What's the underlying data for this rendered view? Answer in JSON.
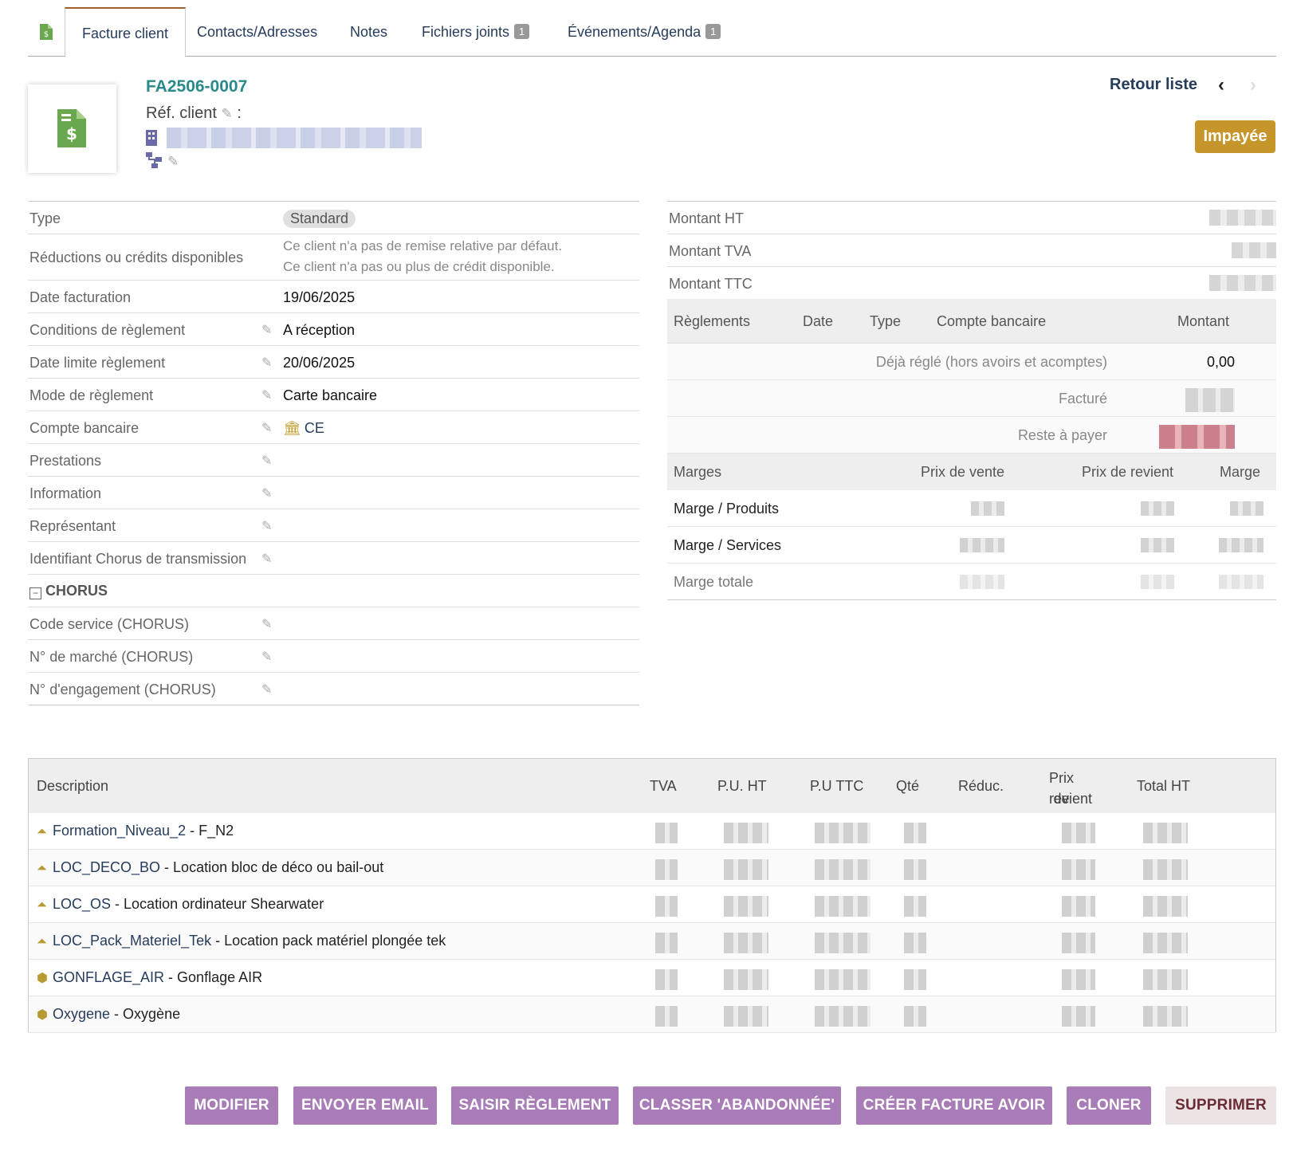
{
  "tabs": {
    "main_label": "Facture client",
    "contacts_label": "Contacts/Adresses",
    "notes_label": "Notes",
    "files_label": "Fichiers joints",
    "files_count": "1",
    "events_label": "Événements/Agenda",
    "events_count": "1"
  },
  "header": {
    "ref": "FA2506-0007",
    "ref_client_label": "Réf. client",
    "ref_client_sep": ":",
    "back_label": "Retour liste",
    "prev_glyph": "‹",
    "next_glyph": "›",
    "status": "Impayée"
  },
  "info": {
    "type_label": "Type",
    "type_value": "Standard",
    "discount_label": "Réductions ou crédits disponibles",
    "discount_line1": "Ce client n'a pas de remise relative par défaut.",
    "discount_line2": "Ce client n'a pas ou plus de crédit disponible.",
    "date_label": "Date facturation",
    "date_value": "19/06/2025",
    "cond_label": "Conditions de règlement",
    "cond_value": "A réception",
    "due_label": "Date limite règlement",
    "due_value": "20/06/2025",
    "mode_label": "Mode de règlement",
    "mode_value": "Carte bancaire",
    "bank_label": "Compte bancaire",
    "bank_value": "CE",
    "prest_label": "Prestations",
    "information_label": "Information",
    "rep_label": "Représentant",
    "chorus_id_label": "Identifiant Chorus de transmission",
    "chorus_section": "CHORUS",
    "chorus_code_label": "Code service (CHORUS)",
    "chorus_market_label": "N° de marché (CHORUS)",
    "chorus_engage_label": "N° d'engagement (CHORUS)"
  },
  "amounts": {
    "ht_label": "Montant HT",
    "tva_label": "Montant TVA",
    "ttc_label": "Montant TTC"
  },
  "payments": {
    "col_reglements": "Règlements",
    "col_date": "Date",
    "col_type": "Type",
    "col_compte": "Compte bancaire",
    "col_montant": "Montant",
    "deja_label": "Déjà réglé (hors avoirs et acomptes)",
    "deja_value": "0,00",
    "facture_label": "Facturé",
    "reste_label": "Reste à payer"
  },
  "margins": {
    "col_marges": "Marges",
    "col_vente": "Prix de vente",
    "col_revient": "Prix de revient",
    "col_marge": "Marge",
    "row_produits": "Marge / Produits",
    "row_services": "Marge / Services",
    "row_totale": "Marge totale"
  },
  "lines": {
    "col_desc": "Description",
    "col_tva": "TVA",
    "col_puht": "P.U. HT",
    "col_puttc": "P.U TTC",
    "col_qte": "Qté",
    "col_reduc": "Réduc.",
    "col_revient_1": "Prix de",
    "col_revient_2": "revient",
    "col_total": "Total HT",
    "items": [
      {
        "ref": "Formation_Niveau_2",
        "label": "F_N2",
        "kind": "service"
      },
      {
        "ref": "LOC_DECO_BO",
        "label": "Location bloc de déco ou bail-out",
        "kind": "service"
      },
      {
        "ref": "LOC_OS",
        "label": "Location ordinateur Shearwater",
        "kind": "service"
      },
      {
        "ref": "LOC_Pack_Materiel_Tek",
        "label": "Location pack matériel plongée tek",
        "kind": "service"
      },
      {
        "ref": "GONFLAGE_AIR",
        "label": "Gonflage AIR",
        "kind": "product"
      },
      {
        "ref": "Oxygene",
        "label": "Oxygène",
        "kind": "product"
      }
    ]
  },
  "actions": {
    "modifier": "MODIFIER",
    "email": "ENVOYER EMAIL",
    "reglement": "SAISIR RÈGLEMENT",
    "abandon": "CLASSER 'ABANDONNÉE'",
    "avoir": "CRÉER FACTURE AVOIR",
    "cloner": "CLONER",
    "supprimer": "SUPPRIMER"
  },
  "colors": {
    "accent_purple": "#a87cb6",
    "status_gold": "#c6962a",
    "ref_teal": "#2a8a8a",
    "link_navy": "#263c5c"
  }
}
